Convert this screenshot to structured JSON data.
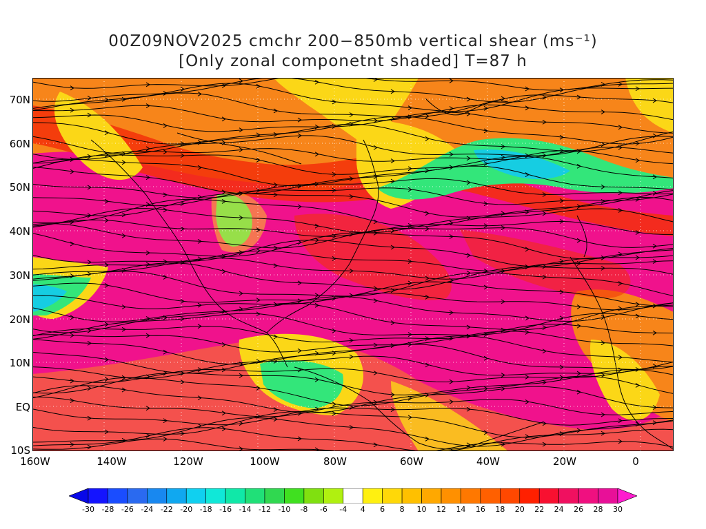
{
  "title": {
    "line1": "00Z09NOV2025 cmchr 200−850mb vertical shear (ms⁻¹)",
    "line2": "[Only zonal componetnt shaded] T=87 h"
  },
  "map": {
    "lat_labels": [
      "70N",
      "60N",
      "50N",
      "40N",
      "30N",
      "20N",
      "10N",
      "EQ",
      "10S"
    ],
    "lon_labels": [
      "160W",
      "140W",
      "120W",
      "100W",
      "80W",
      "60W",
      "40W",
      "20W",
      "0"
    ],
    "colors": {
      "magenta": "#f0128c",
      "red": "#f3300a",
      "orange": "#f7851a",
      "yellow": "#fbd717",
      "green": "#33e67a",
      "cyan": "#16cde2"
    }
  },
  "colorbar": {
    "tick_labels": [
      "-30",
      "-28",
      "-26",
      "-24",
      "-22",
      "-20",
      "-18",
      "-16",
      "-14",
      "-12",
      "-10",
      "-8",
      "-6",
      "-4",
      "4",
      "6",
      "8",
      "10",
      "12",
      "14",
      "16",
      "18",
      "20",
      "22",
      "24",
      "26",
      "28",
      "30"
    ],
    "colors": [
      "#1414ff",
      "#1a4dff",
      "#2a6af0",
      "#1888f0",
      "#10a8f0",
      "#10d0f0",
      "#10e8d8",
      "#10e8a8",
      "#20e078",
      "#30d850",
      "#40e020",
      "#80e010",
      "#b0f010",
      "#ffffff",
      "#fff010",
      "#ffd808",
      "#ffc000",
      "#ffa800",
      "#ff9000",
      "#ff7800",
      "#ff6000",
      "#ff4800",
      "#ff2000",
      "#f81030",
      "#f01060",
      "#f01080",
      "#e81098"
    ],
    "left_arrow_color": "#0808e8",
    "right_arrow_color": "#ff1ccf"
  }
}
